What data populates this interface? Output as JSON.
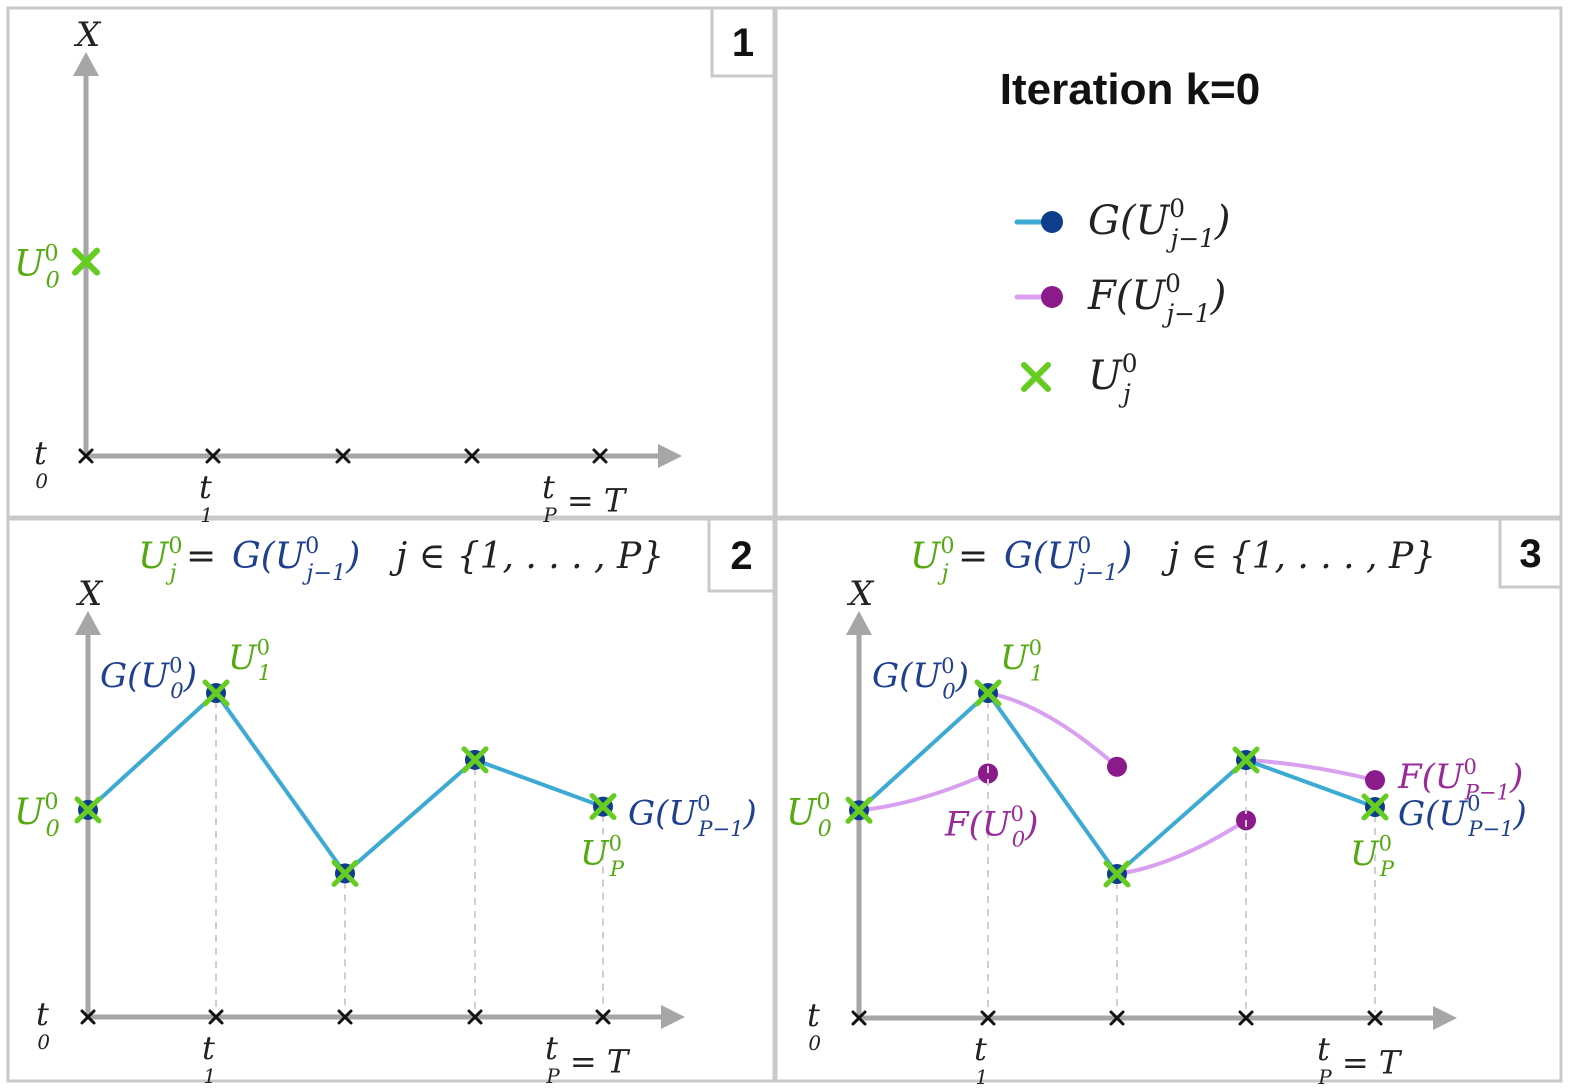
{
  "colors": {
    "frame": "#c9c9c9",
    "axis": "#a6a6a6",
    "green": "#66cc22",
    "green_text": "#55aa11",
    "blue_line": "#3daad4",
    "blue_text": "#1f3f8f",
    "blue_dot": "#0d3d8c",
    "purple_line": "#d8a0ee",
    "purple_dot": "#8b1a8b",
    "purple_text": "#9a2a9a",
    "dashed": "#cfcfcf",
    "black": "#111111"
  },
  "title": "Iteration k=0",
  "panel_numbers": [
    "1",
    "2",
    "3"
  ],
  "axis_labels": {
    "y": "X",
    "t0": "t",
    "t0_sub": "0",
    "t1": "t",
    "t1_sub": "1",
    "tP": "t",
    "tP_sub": "P",
    "tP_rest": " = T"
  },
  "formula": {
    "lhs": "U",
    "lhs_sup": "0",
    "lhs_sub": "j",
    "eq": " = ",
    "rhs": "G(U",
    "rhs_sup": "0",
    "rhs_sub": "j−1",
    "rhs_close": ")",
    "set": "j ∈ {1, . . . , P}"
  },
  "legend": [
    {
      "kind": "G",
      "text": "G(U",
      "sup": "0",
      "sub": "j−1",
      "close": ")"
    },
    {
      "kind": "F",
      "text": "F(U",
      "sup": "0",
      "sub": "j−1",
      "close": ")"
    },
    {
      "kind": "U",
      "text": "U",
      "sup": "0",
      "sub": "j",
      "close": ""
    }
  ],
  "labels": {
    "U0": {
      "text": "U",
      "sup": "0",
      "sub": "0"
    },
    "U1": {
      "text": "U",
      "sup": "0",
      "sub": "1"
    },
    "UP": {
      "text": "U",
      "sup": "0",
      "sub": "P"
    },
    "GU0": {
      "text": "G(U",
      "sup": "0",
      "sub": "0",
      "close": ")"
    },
    "GUP": {
      "text": "G(U",
      "sup": "0",
      "sub": "P−1",
      "close": ")"
    },
    "FU0": {
      "text": "F(U",
      "sup": "0",
      "sub": "0",
      "close": ")"
    },
    "FUP": {
      "text": "F(U",
      "sup": "0",
      "sub": "P−1",
      "close": ")"
    }
  },
  "diagram_data": {
    "time_points": 5,
    "initial_value": 0.62,
    "coarse_values": [
      0.62,
      0.97,
      0.43,
      0.77,
      0.63
    ],
    "fine_values_from_each_start": [
      0.73,
      0.75,
      0.59,
      0.71
    ]
  }
}
